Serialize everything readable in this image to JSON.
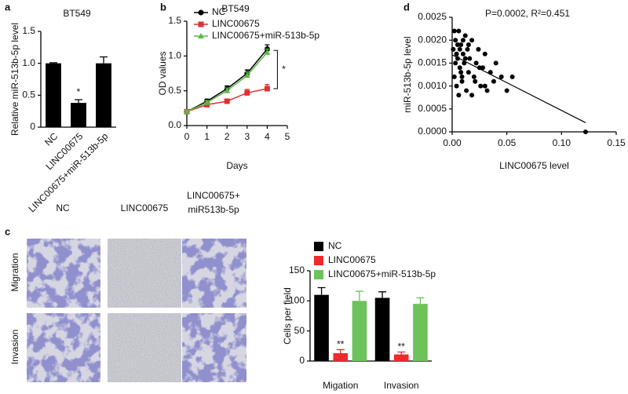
{
  "chart_data": [
    {
      "type": "bar",
      "panel": "a",
      "title": "BT549",
      "ylabel": "Relative miR-513b-5p level",
      "categories": [
        "NC",
        "LINC00675",
        "LINC00675+miR-513b-5p"
      ],
      "values": [
        1.0,
        0.38,
        1.0
      ],
      "errors": [
        0.01,
        0.05,
        0.1
      ],
      "color": "#000000",
      "ylim": [
        0,
        1.5
      ],
      "yticks": [
        0,
        0.5,
        {
          "value": 1.0,
          "label": "1.0"
        },
        1.5
      ],
      "annotations": [
        "*"
      ]
    },
    {
      "type": "line",
      "panel": "b",
      "title": "BT549",
      "xlabel": "Days",
      "ylabel": "OD values",
      "x": [
        0,
        1,
        2,
        3,
        4
      ],
      "series": [
        {
          "name": "NC",
          "color": "#000000",
          "marker": "circle",
          "values": [
            0.2,
            0.35,
            0.53,
            0.75,
            1.1
          ],
          "errors": [
            0.02,
            0.03,
            0.04,
            0.05,
            0.06
          ]
        },
        {
          "name": "LINC00675",
          "color": "#e03030",
          "marker": "square",
          "values": [
            0.2,
            0.3,
            0.35,
            0.47,
            0.53
          ],
          "errors": [
            0.02,
            0.03,
            0.03,
            0.05,
            0.06
          ]
        },
        {
          "name": "LINC00675+miR-513b-5p",
          "color": "#5cb84a",
          "marker": "triangle",
          "values": [
            0.2,
            0.33,
            0.5,
            0.72,
            1.05
          ],
          "errors": [
            0.02,
            0.03,
            0.04,
            0.05,
            0.05
          ]
        }
      ],
      "xlim": [
        0,
        5
      ],
      "xticks": [
        0,
        1,
        2,
        3,
        4,
        5
      ],
      "ylim": [
        0,
        1.5
      ],
      "yticks": [
        {
          "value": 0,
          "label": "0.0"
        },
        0.5,
        {
          "value": 1.0,
          "label": "1.0"
        },
        1.5
      ],
      "annotations": [
        "*"
      ]
    },
    {
      "type": "scatter",
      "panel": "d",
      "annotation": "P=0.0002, R²=0.451",
      "xlabel": "LINC00675 level",
      "ylabel": "miR-513b-5p level",
      "color": "#000000",
      "x": [
        0.001,
        0.002,
        0.003,
        0.004,
        0.005,
        0.006,
        0.007,
        0.008,
        0.009,
        0.01,
        0.011,
        0.012,
        0.013,
        0.014,
        0.015,
        0.016,
        0.018,
        0.02,
        0.022,
        0.024,
        0.026,
        0.028,
        0.03,
        0.032,
        0.035,
        0.038,
        0.04,
        0.045,
        0.05,
        0.055,
        0.002,
        0.004,
        0.006,
        0.008,
        0.01,
        0.012,
        0.015,
        0.018,
        0.021,
        0.025,
        0.03,
        0.122,
        0.003,
        0.005,
        0.007,
        0.009
      ],
      "y": [
        0.0018,
        0.0012,
        0.002,
        0.001,
        0.0016,
        0.0022,
        0.0014,
        0.0019,
        0.0011,
        0.0017,
        0.0015,
        0.0021,
        0.0009,
        0.0018,
        0.0013,
        0.0016,
        0.002,
        0.0012,
        0.0015,
        0.0018,
        0.001,
        0.0014,
        0.0017,
        0.0009,
        0.0013,
        0.0011,
        0.0015,
        0.0012,
        0.0009,
        0.0012,
        0.0022,
        0.0017,
        0.0008,
        0.0013,
        0.002,
        0.0016,
        0.0019,
        0.0008,
        0.0011,
        0.0014,
        0.001,
        0.0,
        0.0015,
        0.0019,
        0.0018,
        0.0012
      ],
      "fit_line": {
        "x": [
          0,
          0.122
        ],
        "y": [
          0.00168,
          0.0002
        ]
      },
      "xlim": [
        0,
        0.15
      ],
      "xticks": [
        {
          "value": 0,
          "label": "0.00"
        },
        {
          "value": 0.05,
          "label": "0.05"
        },
        {
          "value": 0.1,
          "label": "0.10"
        },
        {
          "value": 0.15,
          "label": "0.15"
        }
      ],
      "ylim": [
        0,
        0.0025
      ],
      "yticks": [
        {
          "value": 0,
          "label": "0.0000"
        },
        {
          "value": 0.0005,
          "label": "0.0005"
        },
        {
          "value": 0.001,
          "label": "0.0010"
        },
        {
          "value": 0.0015,
          "label": "0.0015"
        },
        {
          "value": 0.002,
          "label": "0.0020"
        },
        {
          "value": 0.0025,
          "label": "0.0025"
        }
      ]
    },
    {
      "type": "bar",
      "ylabel": "Cells per field",
      "categories": [
        "Migation",
        "Invasion"
      ],
      "series": [
        {
          "name": "NC",
          "color": "#000000",
          "values": [
            110,
            105
          ],
          "errors": [
            12,
            10
          ]
        },
        {
          "name": "LINC00675",
          "color": "#ee2a2a",
          "values": [
            13,
            11
          ],
          "errors": [
            6,
            4
          ]
        },
        {
          "name": "LINC00675+miR-513b-5p",
          "color": "#6cc35a",
          "values": [
            100,
            95
          ],
          "errors": [
            16,
            10
          ]
        }
      ],
      "ylim": [
        0,
        150
      ],
      "yticks": [
        0,
        50,
        100,
        150
      ],
      "annotations": [
        "**",
        "**"
      ]
    }
  ],
  "image_grid": {
    "panel": "c",
    "columns": [
      [
        "NC"
      ],
      [
        "LINC00675"
      ],
      [
        "LINC00675+",
        "miR513b-5p"
      ]
    ],
    "rows": [
      "Migration",
      "Invasion"
    ]
  }
}
